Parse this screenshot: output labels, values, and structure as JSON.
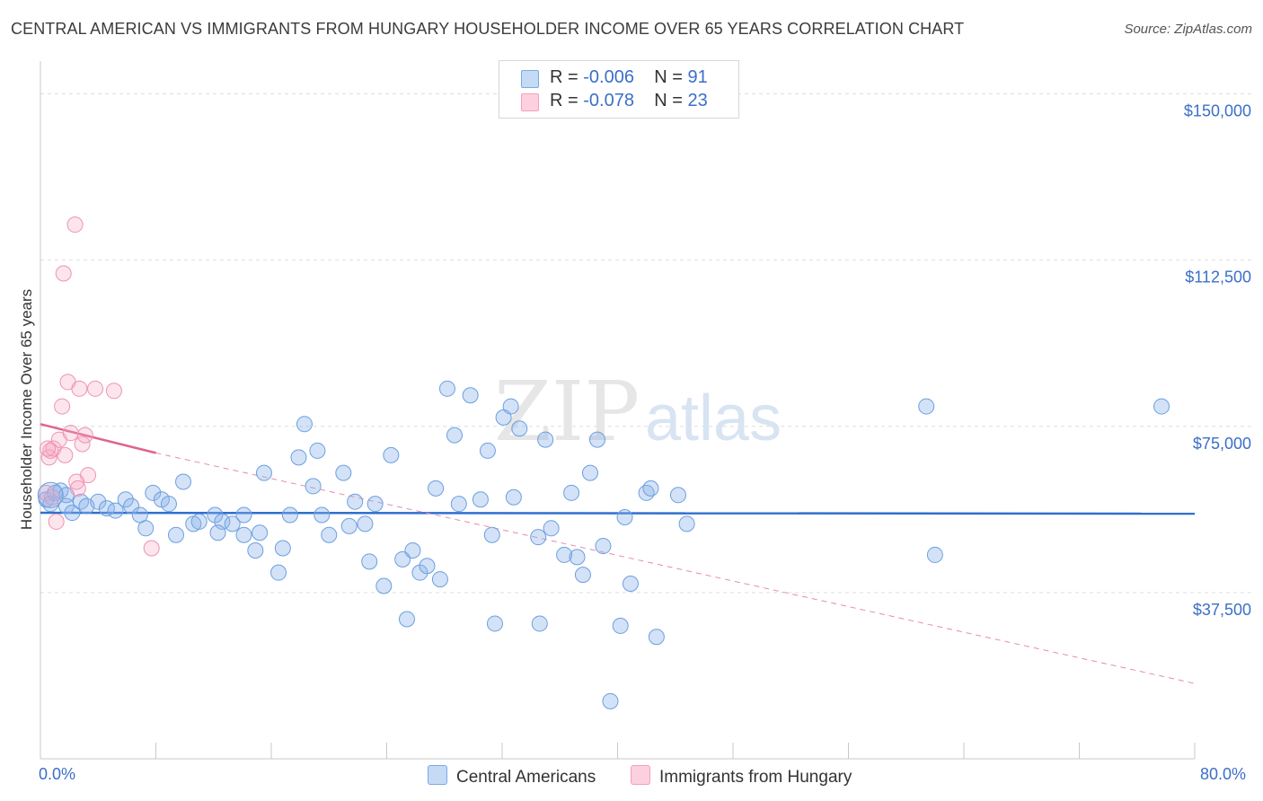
{
  "title": "CENTRAL AMERICAN VS IMMIGRANTS FROM HUNGARY HOUSEHOLDER INCOME OVER 65 YEARS CORRELATION CHART",
  "source": "Source: ZipAtlas.com",
  "watermark": {
    "zip": "ZIP",
    "atlas": "atlas"
  },
  "legend": {
    "rows": [
      {
        "r_label": "R = ",
        "r_value": "-0.006",
        "n_label": "N = ",
        "n_value": "91",
        "color": "#7aaae8"
      },
      {
        "r_label": "R = ",
        "r_value": " -0.078",
        "n_label": "N = ",
        "n_value": "23",
        "color": "#f4a0bb"
      }
    ]
  },
  "bottom_legend": [
    {
      "label": "Central Americans",
      "color": "#7aaae8"
    },
    {
      "label": "Immigrants from Hungary",
      "color": "#f4a0bb"
    }
  ],
  "chart_data": {
    "type": "scatter",
    "title": "CENTRAL AMERICAN VS IMMIGRANTS FROM HUNGARY HOUSEHOLDER INCOME OVER 65 YEARS CORRELATION CHART",
    "xlabel": "",
    "ylabel": "Householder Income Over 65 years",
    "xlim": [
      0,
      80
    ],
    "ylim": [
      0,
      157000
    ],
    "x_tick_labels": [
      "0.0%",
      "80.0%"
    ],
    "y_ticks": [
      37500,
      75000,
      112500,
      150000
    ],
    "y_tick_labels": [
      "$37,500",
      "$75,000",
      "$112,500",
      "$150,000"
    ],
    "series": [
      {
        "name": "Central Americans",
        "color": "#7aaae8",
        "trend": {
          "x": [
            0,
            80
          ],
          "y": [
            55500,
            55300
          ]
        },
        "points": [
          [
            0.4,
            58500
          ],
          [
            0.7,
            57500
          ],
          [
            1.0,
            60000
          ],
          [
            1.4,
            60500
          ],
          [
            1.8,
            57000
          ],
          [
            2.2,
            55500
          ],
          [
            2.8,
            58000
          ],
          [
            3.2,
            57000
          ],
          [
            4.0,
            58000
          ],
          [
            4.6,
            56500
          ],
          [
            5.2,
            56000
          ],
          [
            5.9,
            58500
          ],
          [
            6.3,
            57000
          ],
          [
            6.9,
            55000
          ],
          [
            7.3,
            52000
          ],
          [
            7.8,
            60000
          ],
          [
            8.4,
            58500
          ],
          [
            8.9,
            57500
          ],
          [
            9.4,
            50500
          ],
          [
            10.6,
            53000
          ],
          [
            9.9,
            62500
          ],
          [
            11.0,
            53500
          ],
          [
            12.1,
            55000
          ],
          [
            12.6,
            53500
          ],
          [
            12.3,
            51000
          ],
          [
            13.3,
            53000
          ],
          [
            14.1,
            50500
          ],
          [
            14.1,
            55000
          ],
          [
            15.2,
            51000
          ],
          [
            14.9,
            47000
          ],
          [
            15.5,
            64500
          ],
          [
            16.5,
            42000
          ],
          [
            16.8,
            47500
          ],
          [
            17.3,
            55000
          ],
          [
            17.9,
            68000
          ],
          [
            18.3,
            75500
          ],
          [
            18.9,
            61500
          ],
          [
            19.2,
            69500
          ],
          [
            19.5,
            55000
          ],
          [
            20.0,
            50500
          ],
          [
            21.0,
            64500
          ],
          [
            21.4,
            52500
          ],
          [
            21.8,
            58000
          ],
          [
            22.5,
            53000
          ],
          [
            22.8,
            44500
          ],
          [
            23.2,
            57500
          ],
          [
            23.8,
            39000
          ],
          [
            24.3,
            68500
          ],
          [
            25.1,
            45000
          ],
          [
            25.4,
            31500
          ],
          [
            25.8,
            47000
          ],
          [
            26.3,
            42000
          ],
          [
            26.8,
            43500
          ],
          [
            27.4,
            61000
          ],
          [
            27.7,
            40500
          ],
          [
            28.2,
            83500
          ],
          [
            28.7,
            73000
          ],
          [
            29.0,
            57500
          ],
          [
            29.8,
            82000
          ],
          [
            30.5,
            58500
          ],
          [
            31.0,
            69500
          ],
          [
            31.3,
            50500
          ],
          [
            31.5,
            30500
          ],
          [
            32.1,
            77000
          ],
          [
            32.6,
            79500
          ],
          [
            32.8,
            59000
          ],
          [
            33.2,
            74500
          ],
          [
            34.5,
            50000
          ],
          [
            34.6,
            30500
          ],
          [
            35.0,
            72000
          ],
          [
            35.4,
            52000
          ],
          [
            36.3,
            46000
          ],
          [
            36.8,
            60000
          ],
          [
            37.2,
            45500
          ],
          [
            37.6,
            41500
          ],
          [
            38.1,
            64500
          ],
          [
            38.6,
            72000
          ],
          [
            39.0,
            48000
          ],
          [
            39.5,
            13000
          ],
          [
            40.2,
            30000
          ],
          [
            40.5,
            54500
          ],
          [
            40.9,
            39500
          ],
          [
            42.0,
            60000
          ],
          [
            42.3,
            61000
          ],
          [
            42.7,
            27500
          ],
          [
            44.2,
            59500
          ],
          [
            44.8,
            53000
          ],
          [
            61.4,
            79500
          ],
          [
            62.0,
            46000
          ],
          [
            77.7,
            79500
          ],
          [
            1.8,
            59500
          ]
        ]
      },
      {
        "name": "Immigrants from Hungary",
        "color": "#f4a0bb",
        "trend": {
          "x": [
            0,
            8
          ],
          "y": [
            75500,
            69000
          ],
          "extended_y_at_80": 17000
        },
        "points": [
          [
            0.4,
            60000
          ],
          [
            0.6,
            68000
          ],
          [
            0.7,
            69500
          ],
          [
            0.8,
            59000
          ],
          [
            0.9,
            70000
          ],
          [
            1.1,
            53500
          ],
          [
            1.3,
            72000
          ],
          [
            1.5,
            79500
          ],
          [
            1.7,
            68500
          ],
          [
            1.9,
            85000
          ],
          [
            2.1,
            73500
          ],
          [
            2.4,
            120500
          ],
          [
            2.5,
            62500
          ],
          [
            2.6,
            61000
          ],
          [
            2.7,
            83500
          ],
          [
            2.9,
            71000
          ],
          [
            3.1,
            73000
          ],
          [
            3.3,
            64000
          ],
          [
            3.8,
            83500
          ],
          [
            5.1,
            83000
          ],
          [
            7.7,
            47500
          ],
          [
            1.6,
            109500
          ],
          [
            0.5,
            70000
          ]
        ]
      }
    ],
    "legend_position": "top-center"
  }
}
